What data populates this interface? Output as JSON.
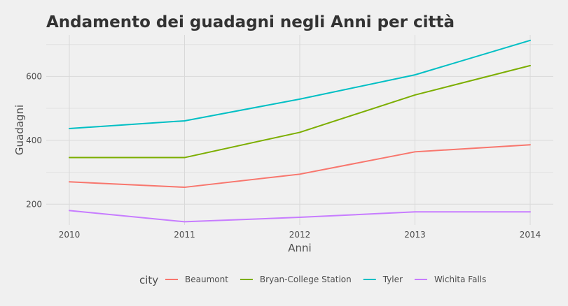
{
  "chart_data": {
    "type": "line",
    "title": "Andamento dei guadagni negli Anni per città",
    "xlabel": "Anni",
    "ylabel": "Guadagni",
    "x": [
      2010,
      2011,
      2012,
      2013,
      2014
    ],
    "xlim": [
      2010,
      2014
    ],
    "ylim": [
      135,
      730
    ],
    "yticks": [
      200,
      400,
      600
    ],
    "grid": true,
    "legend_title": "city",
    "legend_position": "bottom",
    "series": [
      {
        "name": "Beaumont",
        "color": "#F8766D",
        "values": [
          270,
          253,
          294,
          364,
          386
        ]
      },
      {
        "name": "Bryan-College Station",
        "color": "#7CAE00",
        "values": [
          346,
          346,
          425,
          542,
          634
        ]
      },
      {
        "name": "Tyler",
        "color": "#00BFC4",
        "values": [
          437,
          461,
          529,
          605,
          713
        ]
      },
      {
        "name": "Wichita Falls",
        "color": "#C77CFF",
        "values": [
          180,
          145,
          159,
          176,
          176
        ]
      }
    ]
  }
}
